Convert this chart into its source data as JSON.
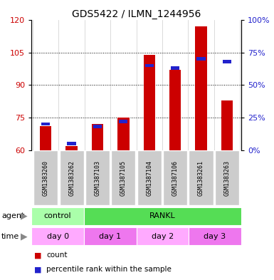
{
  "title": "GDS5422 / ILMN_1244956",
  "samples": [
    "GSM1383260",
    "GSM1383262",
    "GSM1387103",
    "GSM1387105",
    "GSM1387104",
    "GSM1387106",
    "GSM1383261",
    "GSM1383263"
  ],
  "counts": [
    71,
    62,
    72,
    75,
    104,
    97,
    117,
    83
  ],
  "percentile_ranks": [
    20,
    5,
    18,
    22,
    65,
    63,
    70,
    68
  ],
  "ylim_left": [
    60,
    120
  ],
  "yticks_left": [
    60,
    75,
    90,
    105,
    120
  ],
  "ylim_right": [
    0,
    100
  ],
  "yticks_right": [
    0,
    25,
    50,
    75,
    100
  ],
  "bar_color": "#cc0000",
  "percentile_color": "#2222cc",
  "agent_row": [
    {
      "label": "control",
      "span": [
        0,
        2
      ],
      "color": "#aaffaa"
    },
    {
      "label": "RANKL",
      "span": [
        2,
        8
      ],
      "color": "#55dd55"
    }
  ],
  "time_row": [
    {
      "label": "day 0",
      "span": [
        0,
        2
      ],
      "color": "#ffaaff"
    },
    {
      "label": "day 1",
      "span": [
        2,
        4
      ],
      "color": "#ee77ee"
    },
    {
      "label": "day 2",
      "span": [
        4,
        6
      ],
      "color": "#ffaaff"
    },
    {
      "label": "day 3",
      "span": [
        6,
        8
      ],
      "color": "#ee77ee"
    }
  ],
  "ylabel_left_color": "#cc0000",
  "ylabel_right_color": "#2222cc",
  "bar_width": 0.45,
  "legend_count_color": "#cc0000",
  "legend_percentile_color": "#2222cc",
  "sample_bg": "#cccccc",
  "fig_width": 3.85,
  "fig_height": 3.93,
  "dpi": 100
}
